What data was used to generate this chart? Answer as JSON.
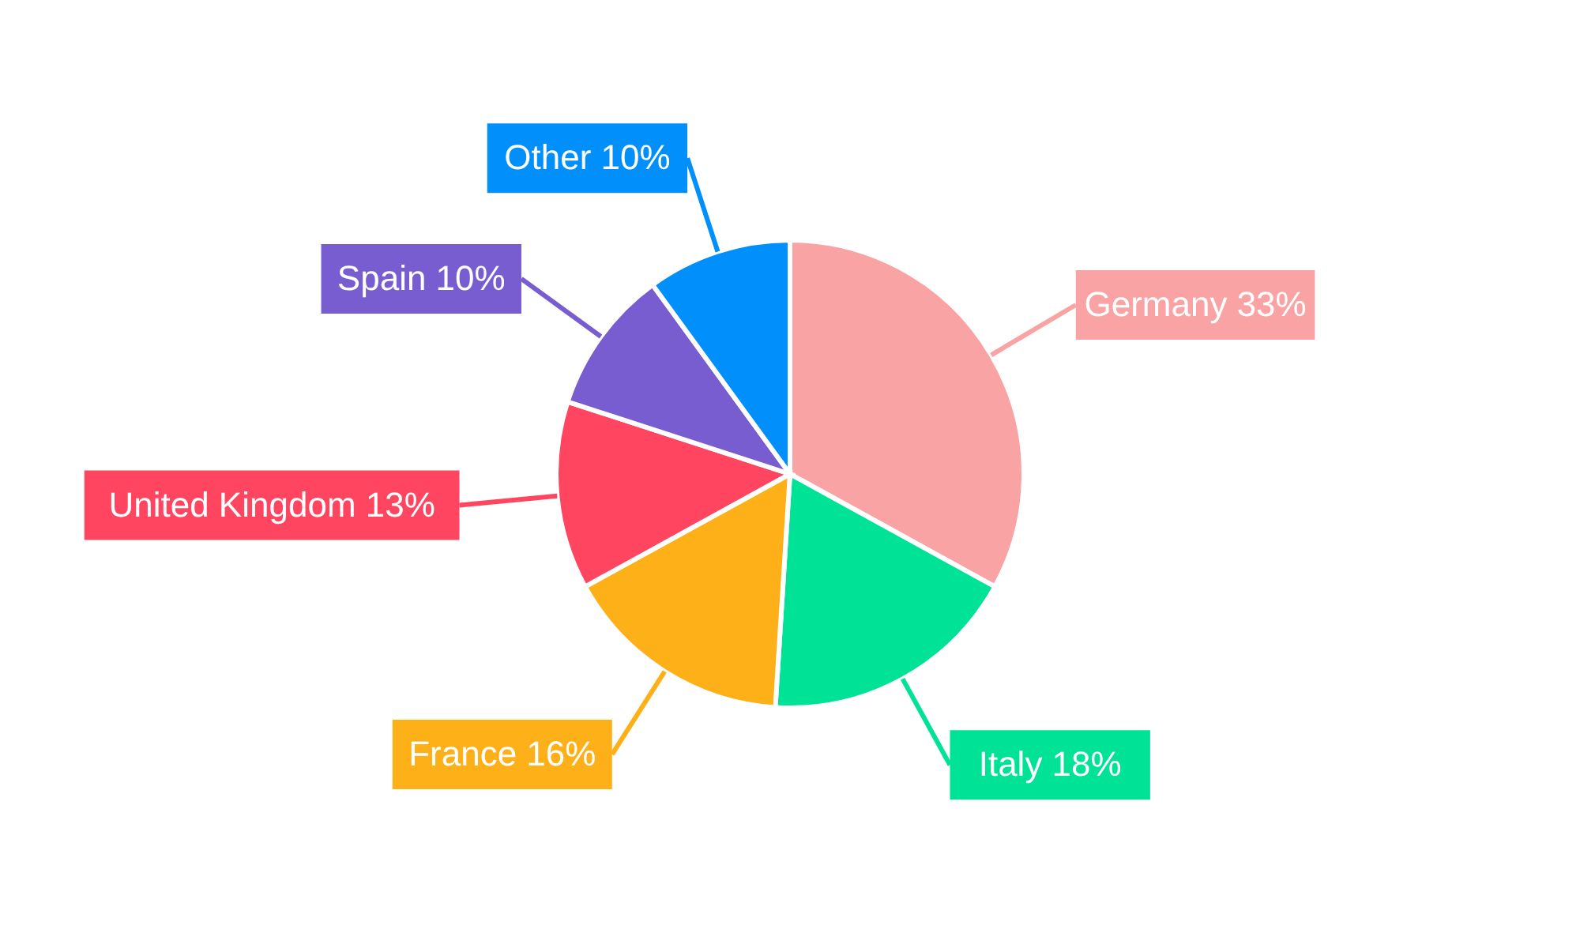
{
  "chart_data": {
    "type": "pie",
    "categories": [
      "Germany",
      "Italy",
      "France",
      "United Kingdom",
      "Spain",
      "Other"
    ],
    "values": [
      33,
      18,
      16,
      13,
      10,
      10
    ],
    "value_labels": [
      "33%",
      "18%",
      "16%",
      "13%",
      "10%",
      "10%"
    ],
    "colors": [
      "#f9a3a4",
      "#00e396",
      "#feb019",
      "#ff4560",
      "#775dd0",
      "#008ffb"
    ]
  }
}
